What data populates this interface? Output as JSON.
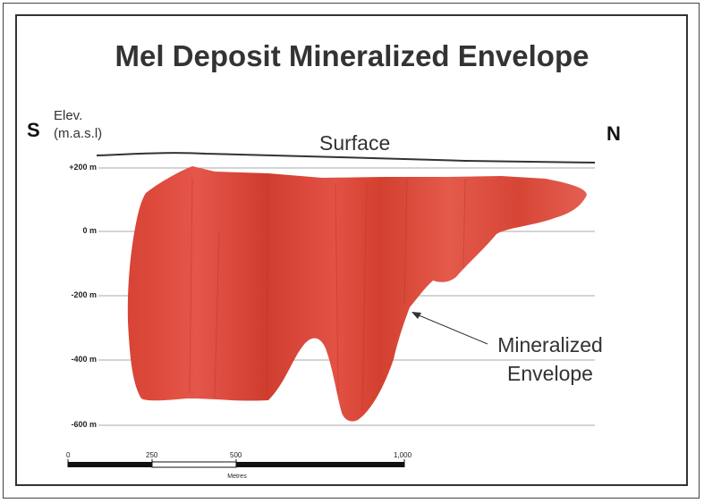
{
  "title": "Mel Deposit Mineralized Envelope",
  "compass": {
    "left": "S",
    "right": "N"
  },
  "elevation_label": {
    "line1": "Elev.",
    "line2": "(m.a.s.l)"
  },
  "surface_label": "Surface",
  "elevation_ticks": [
    "+200 m",
    "0 m",
    "-200 m",
    "-400 m",
    "-600 m"
  ],
  "envelope_label": {
    "line1": "Mineralized",
    "line2": "Envelope"
  },
  "scale_bar": {
    "ticks": [
      "0",
      "250",
      "500",
      "1,000"
    ],
    "unit": "Metres"
  },
  "colors": {
    "envelope_fill": "#dd4a3a",
    "envelope_dark": "#c93a2c",
    "gridline": "#aaaaaa",
    "text": "#333333"
  }
}
